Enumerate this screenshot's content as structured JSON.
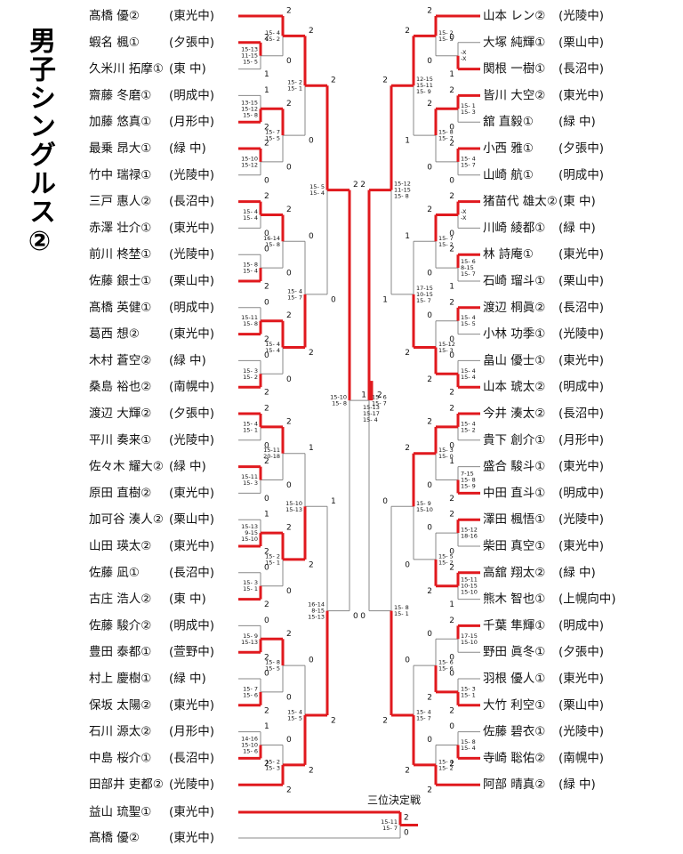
{
  "title": "男子シングルス②",
  "left": {
    "players": [
      {
        "name": "髙橋 優②",
        "school": "(東光中)"
      },
      {
        "name": "蝦名 楓①",
        "school": "(夕張中)"
      },
      {
        "name": "久米川 拓摩①",
        "school": "(東 中)"
      },
      {
        "name": "齋藤 冬磨①",
        "school": "(明成中)"
      },
      {
        "name": "加藤 悠真①",
        "school": "(月形中)"
      },
      {
        "name": "最乗 昂大①",
        "school": "(緑 中)"
      },
      {
        "name": "竹中 瑞禄①",
        "school": "(光陵中)"
      },
      {
        "name": "三戸 惠人②",
        "school": "(長沼中)"
      },
      {
        "name": "赤澤 壮介①",
        "school": "(東光中)"
      },
      {
        "name": "前川 柊埜①",
        "school": "(光陵中)"
      },
      {
        "name": "佐藤 銀士①",
        "school": "(栗山中)"
      },
      {
        "name": "髙橋 英健①",
        "school": "(明成中)"
      },
      {
        "name": "葛西 想②",
        "school": "(東光中)"
      },
      {
        "name": "木村 蒼空②",
        "school": "(緑 中)"
      },
      {
        "name": "桑島 裕也②",
        "school": "(南幌中)"
      },
      {
        "name": "渡辺 大輝②",
        "school": "(夕張中)"
      },
      {
        "name": "平川 奏来①",
        "school": "(光陵中)"
      },
      {
        "name": "佐々木 耀大②",
        "school": "(緑 中)"
      },
      {
        "name": "原田 直樹②",
        "school": "(東光中)"
      },
      {
        "name": "加可谷 湊人②",
        "school": "(栗山中)"
      },
      {
        "name": "山田 瑛太②",
        "school": "(東光中)"
      },
      {
        "name": "佐藤 凪①",
        "school": "(長沼中)"
      },
      {
        "name": "古庄 浩人②",
        "school": "(東 中)"
      },
      {
        "name": "佐藤 駿介②",
        "school": "(明成中)"
      },
      {
        "name": "豊田 泰都①",
        "school": "(萱野中)"
      },
      {
        "name": "村上 慶樹①",
        "school": "(緑 中)"
      },
      {
        "name": "保坂 太陽②",
        "school": "(東光中)"
      },
      {
        "name": "石川 源太②",
        "school": "(月形中)"
      },
      {
        "name": "中島 桜介①",
        "school": "(長沼中)"
      },
      {
        "name": "田部井 吏都②",
        "school": "(光陵中)"
      }
    ],
    "matches": [
      {
        "scores": [
          "15-13",
          "11-15",
          "15- 5"
        ],
        "results": [
          "2",
          "1"
        ]
      },
      {
        "scores": [
          "15- 4",
          "15- 2"
        ],
        "results": [
          "2",
          "0"
        ]
      },
      {
        "scores": [
          "13-15",
          "15-12",
          "15- 8"
        ],
        "results": [
          "1",
          "2"
        ]
      },
      {
        "scores": [
          "15-10",
          "15-12"
        ],
        "results": [
          "2",
          "0"
        ]
      },
      {
        "scores": [
          "15- 7",
          "15- 5"
        ],
        "results": [
          "2",
          "0"
        ]
      },
      {
        "scores": [
          "15- 2",
          "15- 1"
        ],
        "results": [
          "2",
          "0"
        ]
      },
      {
        "scores": [
          "15- 4",
          "15- 4"
        ],
        "results": [
          "2",
          "0"
        ]
      },
      {
        "scores": [
          "15- 8",
          "15- 4"
        ],
        "results": [
          "0",
          "2"
        ]
      },
      {
        "scores": [
          "16-14",
          "15- 8"
        ],
        "results": [
          "2",
          "0"
        ]
      },
      {
        "scores": [
          "15-11",
          "15- 8"
        ],
        "results": [
          "0",
          "2"
        ]
      },
      {
        "scores": [
          "15- 3",
          "15- 2"
        ],
        "results": [
          "0",
          "2"
        ]
      },
      {
        "scores": [
          "15- 4",
          "15- 4"
        ],
        "results": [
          "2",
          "0"
        ]
      },
      {
        "scores": [
          "15- 4",
          "15- 7"
        ],
        "results": [
          "0",
          "2"
        ]
      },
      {
        "scores": [
          "15- 5",
          "15- 4"
        ],
        "results": [
          "2",
          "0"
        ]
      },
      {
        "scores": [
          "15- 4",
          "15- 1"
        ],
        "results": [
          "2",
          "0"
        ]
      },
      {
        "scores": [
          "15-11",
          "15- 3"
        ],
        "results": [
          "2",
          "0"
        ]
      },
      {
        "scores": [
          "15-11",
          "20-18"
        ],
        "results": [
          "2",
          "0"
        ]
      },
      {
        "scores": [
          "15-13",
          "9-15",
          "15-10"
        ],
        "results": [
          "1",
          "2"
        ]
      },
      {
        "scores": [
          "15- 3",
          "15- 1"
        ],
        "results": [
          "0",
          "2"
        ]
      },
      {
        "scores": [
          "15- 2",
          "15- 1"
        ],
        "results": [
          "2",
          "0"
        ]
      },
      {
        "scores": [
          "15-10",
          "15-13"
        ],
        "results": [
          "1",
          "2"
        ]
      },
      {
        "scores": [
          "15- 9",
          "15-13"
        ],
        "results": [
          "0",
          "2"
        ]
      },
      {
        "scores": [
          "15- 7",
          "15- 6"
        ],
        "results": [
          "0",
          "2"
        ]
      },
      {
        "scores": [
          "15- 8",
          "15- 5"
        ],
        "results": [
          "2",
          "0"
        ]
      },
      {
        "scores": [
          "14-16",
          "15-10",
          "15- 6"
        ],
        "results": [
          "1",
          "2"
        ]
      },
      {
        "scores": [
          "15- 2",
          "15- 3"
        ],
        "results": [
          "0",
          "2"
        ]
      },
      {
        "scores": [
          "15- 4",
          "15- 5"
        ],
        "results": [
          "0",
          "2"
        ]
      },
      {
        "scores": [
          "16-14",
          "8-15",
          "15-13"
        ],
        "results": [
          "1",
          "2"
        ]
      },
      {
        "scores": [
          "15-10",
          "15- 8"
        ],
        "results": [
          "2",
          "0"
        ]
      }
    ]
  },
  "right": {
    "players": [
      {
        "name": "山本 レン②",
        "school": "(光陵中)"
      },
      {
        "name": "大塚 純輝①",
        "school": "(栗山中)"
      },
      {
        "name": "関根 一樹①",
        "school": "(長沼中)"
      },
      {
        "name": "皆川 大空②",
        "school": "(東光中)"
      },
      {
        "name": "舘 直毅①",
        "school": "(緑 中)"
      },
      {
        "name": "小西 雅①",
        "school": "(夕張中)"
      },
      {
        "name": "山崎 航①",
        "school": "(明成中)"
      },
      {
        "name": "猪苗代 雄太②",
        "school": "(東 中)"
      },
      {
        "name": "川崎 綾都①",
        "school": "(緑 中)"
      },
      {
        "name": "林 詩庵①",
        "school": "(東光中)"
      },
      {
        "name": "石崎 瑠斗①",
        "school": "(栗山中)"
      },
      {
        "name": "渡辺 桐眞②",
        "school": "(長沼中)"
      },
      {
        "name": "小林 功季①",
        "school": "(光陵中)"
      },
      {
        "name": "畠山 優士①",
        "school": "(東光中)"
      },
      {
        "name": "山本 琥太②",
        "school": "(明成中)"
      },
      {
        "name": "今井 湊太②",
        "school": "(長沼中)"
      },
      {
        "name": "貴下 創介①",
        "school": "(月形中)"
      },
      {
        "name": "盛合 駿斗①",
        "school": "(東光中)"
      },
      {
        "name": "中田 直斗①",
        "school": "(明成中)"
      },
      {
        "name": "澤田 楓悟①",
        "school": "(光陵中)"
      },
      {
        "name": "柴田 真空①",
        "school": "(東光中)"
      },
      {
        "name": "高舘 翔太②",
        "school": "(緑 中)"
      },
      {
        "name": "熊木 智也①",
        "school": "(上幌向中)"
      },
      {
        "name": "千葉 隼輝①",
        "school": "(明成中)"
      },
      {
        "name": "野田 眞冬①",
        "school": "(夕張中)"
      },
      {
        "name": "羽根 優人①",
        "school": "(東光中)"
      },
      {
        "name": "大竹 利空①",
        "school": "(栗山中)"
      },
      {
        "name": "佐藤 碧衣①",
        "school": "(光陵中)"
      },
      {
        "name": "寺崎 聡佑②",
        "school": "(南幌中)"
      },
      {
        "name": "阿部 晴真②",
        "school": "(緑 中)"
      }
    ],
    "matches": [
      {
        "scores": [
          "-X",
          "-X"
        ],
        "results": [
          "0",
          "1"
        ]
      },
      {
        "scores": [
          "15- 2",
          "15- 5"
        ],
        "results": [
          "2",
          "0"
        ]
      },
      {
        "scores": [
          "15- 1",
          "15- 3"
        ],
        "results": [
          "2",
          "0"
        ]
      },
      {
        "scores": [
          "15- 4",
          "15- 7"
        ],
        "results": [
          "2",
          "0"
        ]
      },
      {
        "scores": [
          "15- 8",
          "15- 7"
        ],
        "results": [
          "2",
          "0"
        ]
      },
      {
        "scores": [
          "12-15",
          "15-11",
          "15- 9"
        ],
        "results": [
          "2",
          "1"
        ]
      },
      {
        "scores": [
          "-X",
          "-X"
        ],
        "results": [
          "2",
          "0"
        ]
      },
      {
        "scores": [
          "15- 6",
          "8-15",
          "15- 7"
        ],
        "results": [
          "2",
          "1"
        ]
      },
      {
        "scores": [
          "15- 7",
          "15- 2"
        ],
        "results": [
          "2",
          "0"
        ]
      },
      {
        "scores": [
          "15- 4",
          "15- 5"
        ],
        "results": [
          "2",
          "0"
        ]
      },
      {
        "scores": [
          "15- 4",
          "15- 4"
        ],
        "results": [
          "0",
          "2"
        ]
      },
      {
        "scores": [
          "15-12",
          "15- 3"
        ],
        "results": [
          "0",
          "2"
        ]
      },
      {
        "scores": [
          "17-15",
          "10-15",
          "15- 7"
        ],
        "results": [
          "1",
          "2"
        ]
      },
      {
        "scores": [
          "15-12",
          "11-15",
          "15- 8"
        ],
        "results": [
          "2",
          "1"
        ]
      },
      {
        "scores": [
          "15- 4",
          "15- 2"
        ],
        "results": [
          "2",
          "0"
        ]
      },
      {
        "scores": [
          "7-15",
          "15- 8",
          "15- 9"
        ],
        "results": [
          "1",
          "2"
        ]
      },
      {
        "scores": [
          "15- 3",
          "15- 0"
        ],
        "results": [
          "2",
          "0"
        ]
      },
      {
        "scores": [
          "15-12",
          "18-16"
        ],
        "results": [
          "2",
          "0"
        ]
      },
      {
        "scores": [
          "15-11",
          "10-15",
          "15-10"
        ],
        "results": [
          "2",
          "1"
        ]
      },
      {
        "scores": [
          "15- 5",
          "15- 2"
        ],
        "results": [
          "0",
          "2"
        ]
      },
      {
        "scores": [
          "15- 9",
          "15-10"
        ],
        "results": [
          "2",
          "0"
        ]
      },
      {
        "scores": [
          "17-15",
          "15-10"
        ],
        "results": [
          "2",
          "0"
        ]
      },
      {
        "scores": [
          "15- 3",
          "15- 1"
        ],
        "results": [
          "0",
          "2"
        ]
      },
      {
        "scores": [
          "15- 6",
          "15- 6"
        ],
        "results": [
          "0",
          "2"
        ]
      },
      {
        "scores": [
          "15- 8",
          "15- 4"
        ],
        "results": [
          "0",
          "2"
        ]
      },
      {
        "scores": [
          "15- 4",
          "15- 2"
        ],
        "results": [
          "0",
          "2"
        ]
      },
      {
        "scores": [
          "15- 4",
          "15- 7"
        ],
        "results": [
          "0",
          "2"
        ]
      },
      {
        "scores": [
          "15- 8",
          "15- 1"
        ],
        "results": [
          "0",
          "2"
        ]
      },
      {
        "scores": [
          "15- 6",
          "15- 7"
        ],
        "results": [
          "2",
          "0"
        ]
      }
    ]
  },
  "final": {
    "scores": [
      "15-13",
      "15-17",
      "15- 4"
    ],
    "results": [
      "1",
      "2"
    ]
  },
  "third_place": {
    "label": "三位決定戦",
    "players": [
      {
        "name": "益山 琉聖①",
        "school": "(東光中)"
      },
      {
        "name": "髙橋 優②",
        "school": "(東光中)"
      }
    ],
    "scores": [
      "15-11",
      "15- 7"
    ],
    "results": [
      "2",
      "0"
    ]
  }
}
